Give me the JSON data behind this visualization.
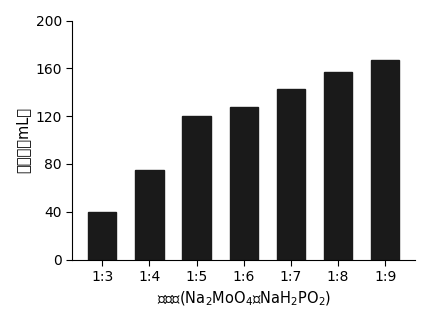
{
  "categories": [
    "1:3",
    "1:4",
    "1:5",
    "1:6",
    "1:7",
    "1:8",
    "1:9"
  ],
  "values": [
    40,
    75,
    120,
    128,
    143,
    157,
    167
  ],
  "bar_color": "#1a1a1a",
  "title": "",
  "xlabel": "摩尔比(Na$_2$MoO$_4$：NaH$_2$PO$_2$)",
  "ylabel": "产氢量（mL）",
  "ylim": [
    0,
    200
  ],
  "yticks": [
    0,
    40,
    80,
    120,
    160,
    200
  ],
  "bar_width": 0.6,
  "background_color": "#ffffff",
  "xlabel_fontsize": 10.5,
  "ylabel_fontsize": 10.5,
  "tick_fontsize": 10
}
